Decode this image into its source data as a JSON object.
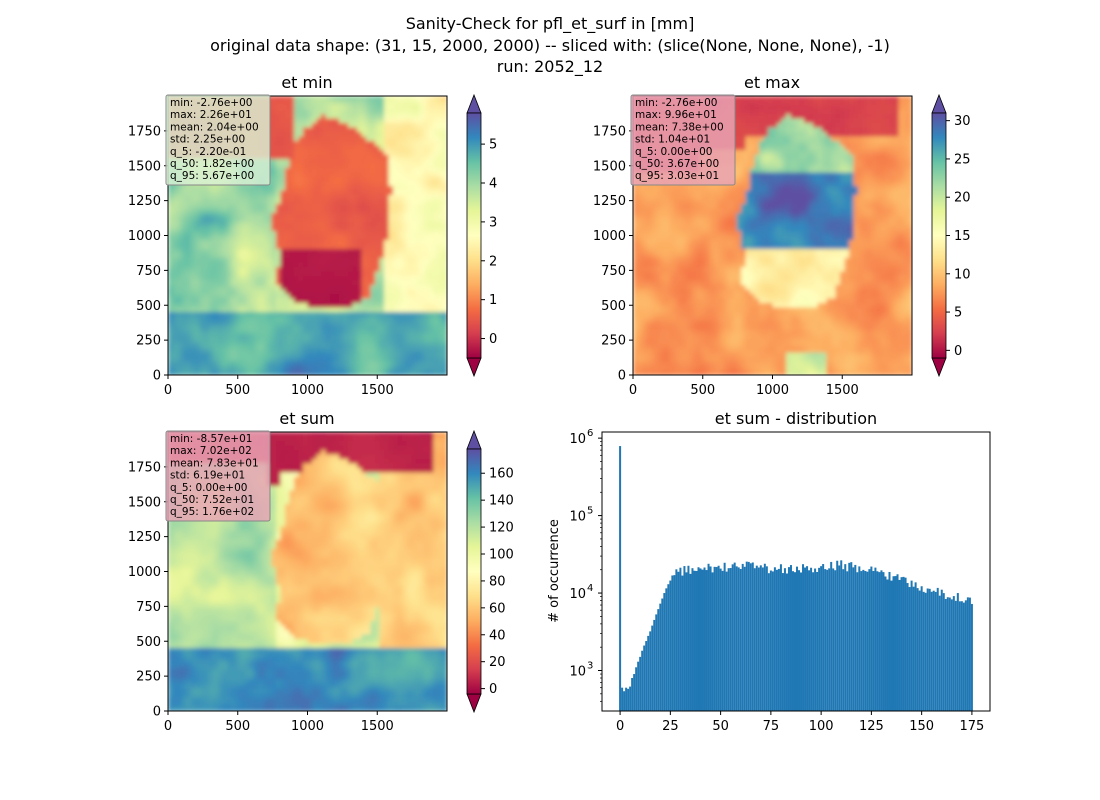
{
  "figure": {
    "title_lines": [
      "Sanity-Check for pfl_et_surf in [mm]",
      "original data shape: (31, 15, 2000, 2000) -- sliced with: (slice(None, None, None), -1)",
      "run: 2052_12"
    ]
  },
  "colormap": {
    "name": "Spectral",
    "stops": [
      "#9e0142",
      "#d53e4f",
      "#f46d43",
      "#fdae61",
      "#fee08b",
      "#ffffbf",
      "#e6f598",
      "#abdda4",
      "#66c2a5",
      "#3288bd",
      "#5e4fa2"
    ]
  },
  "chart_data": [
    {
      "type": "heatmap",
      "title": "et min",
      "x_ticks": [
        "0",
        "500",
        "1000",
        "1500"
      ],
      "y_ticks": [
        "0",
        "250",
        "500",
        "750",
        "1000",
        "1250",
        "1500",
        "1750"
      ],
      "xlim": [
        0,
        2000
      ],
      "ylim": [
        0,
        2000
      ],
      "colorbar": {
        "vmin": -0.5,
        "vmax": 5.8,
        "ticks": [
          "0",
          "1",
          "2",
          "3",
          "4",
          "5"
        ],
        "tick_values": [
          0,
          1,
          2,
          3,
          4,
          5
        ]
      },
      "stats": [
        "min: -2.76e+00",
        "max: 2.26e+01",
        "mean: 2.04e+00",
        "std: 2.25e+00",
        "q_5: -2.20e-01",
        "q_50: 1.82e+00",
        "q_95: 5.67e+00"
      ],
      "stats_box_color": "#d9f0d3"
    },
    {
      "type": "heatmap",
      "title": "et max",
      "x_ticks": [
        "0",
        "500",
        "1000",
        "1500"
      ],
      "y_ticks": [
        "0",
        "250",
        "500",
        "750",
        "1000",
        "1250",
        "1500",
        "1750"
      ],
      "xlim": [
        0,
        2000
      ],
      "ylim": [
        0,
        2000
      ],
      "colorbar": {
        "vmin": -1,
        "vmax": 31,
        "ticks": [
          "0",
          "5",
          "10",
          "15",
          "20",
          "25",
          "30"
        ],
        "tick_values": [
          0,
          5,
          10,
          15,
          20,
          25,
          30
        ]
      },
      "stats": [
        "min: -2.76e+00",
        "max: 9.96e+01",
        "mean: 7.38e+00",
        "std: 1.04e+01",
        "q_5: 0.00e+00",
        "q_50: 3.67e+00",
        "q_95: 3.03e+01"
      ],
      "stats_box_color": "#e8a4b6"
    },
    {
      "type": "heatmap",
      "title": "et sum",
      "x_ticks": [
        "0",
        "500",
        "1000",
        "1500"
      ],
      "y_ticks": [
        "0",
        "250",
        "500",
        "750",
        "1000",
        "1250",
        "1500",
        "1750"
      ],
      "xlim": [
        0,
        2000
      ],
      "ylim": [
        0,
        2000
      ],
      "colorbar": {
        "vmin": -4,
        "vmax": 178,
        "ticks": [
          "0",
          "20",
          "40",
          "60",
          "80",
          "100",
          "120",
          "140",
          "160"
        ],
        "tick_values": [
          0,
          20,
          40,
          60,
          80,
          100,
          120,
          140,
          160
        ]
      },
      "stats": [
        "min: -8.57e+01",
        "max: 7.02e+02",
        "mean: 7.83e+01",
        "std: 6.19e+01",
        "q_5: 0.00e+00",
        "q_50: 7.52e+01",
        "q_95: 1.76e+02"
      ],
      "stats_box_color": "#e8a4b6"
    },
    {
      "type": "bar",
      "title": "et sum - distribution",
      "ylabel": "# of occurrence",
      "xlabel": "",
      "yscale": "log",
      "ylim": [
        300,
        1200000
      ],
      "xlim": [
        -9,
        184
      ],
      "x_ticks": [
        "0",
        "25",
        "50",
        "75",
        "100",
        "125",
        "150",
        "175"
      ],
      "x_tick_values": [
        0,
        25,
        50,
        75,
        100,
        125,
        150,
        175
      ],
      "y_ticks": [
        {
          "base": "10",
          "exp": "3",
          "value": 1000
        },
        {
          "base": "10",
          "exp": "4",
          "value": 10000
        },
        {
          "base": "10",
          "exp": "5",
          "value": 100000
        },
        {
          "base": "10",
          "exp": "6",
          "value": 1000000
        }
      ],
      "bar_color": "#1f77b4",
      "bin_width": 1,
      "x": [
        0,
        1,
        2,
        3,
        4,
        5,
        6,
        7,
        8,
        9,
        10,
        11,
        12,
        13,
        14,
        15,
        16,
        17,
        18,
        19,
        20,
        21,
        22,
        23,
        24,
        25,
        26,
        27,
        28,
        29,
        30,
        35,
        40,
        45,
        50,
        55,
        60,
        65,
        70,
        75,
        80,
        85,
        90,
        95,
        100,
        105,
        110,
        115,
        120,
        125,
        130,
        135,
        140,
        145,
        150,
        155,
        160,
        165,
        170,
        175
      ],
      "values": [
        790000,
        600,
        540,
        600,
        580,
        620,
        800,
        900,
        1100,
        1300,
        1500,
        1800,
        2100,
        2400,
        2800,
        3200,
        3800,
        4500,
        5300,
        6200,
        7300,
        8500,
        10000,
        11500,
        13000,
        14500,
        16000,
        17000,
        18000,
        18500,
        19000,
        20000,
        20500,
        21000,
        21500,
        22000,
        22500,
        22000,
        21500,
        21000,
        20500,
        20500,
        21000,
        21500,
        22000,
        22500,
        23000,
        22000,
        21000,
        19500,
        18000,
        17000,
        15000,
        13500,
        12000,
        11000,
        10000,
        9000,
        8500,
        8000
      ]
    }
  ]
}
